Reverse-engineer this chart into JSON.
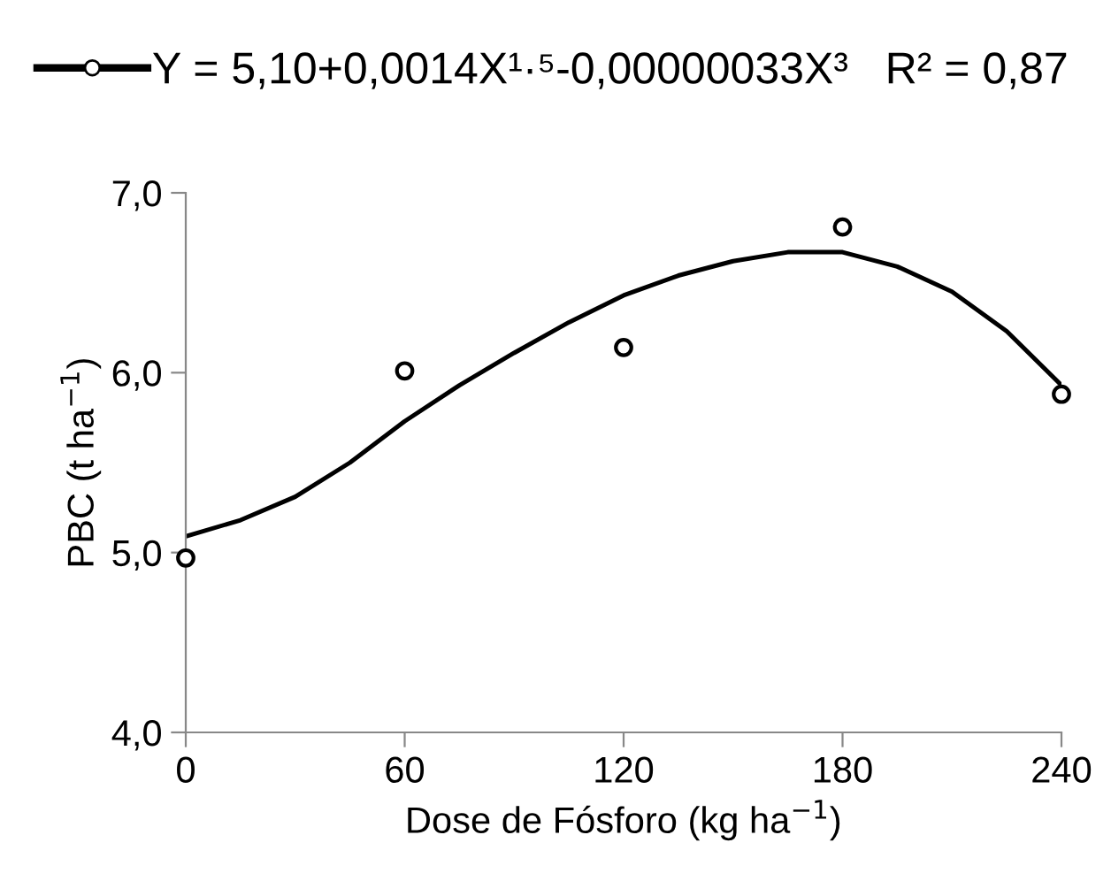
{
  "chart_data": {
    "type": "scatter",
    "xlabel": "Dose de Fósforo (kg ha$^{−1}$)",
    "ylabel": "PBC (t ha$^{−1}$)",
    "series": [
      {
        "color": "#000000",
        "marker": "circle",
        "x": [
          0,
          60,
          120,
          180,
          240
        ],
        "values": [
          4.97,
          6.01,
          6.14,
          6.81,
          5.88
        ]
      },
      {
        "type": "line",
        "name": "Y = 5,10+0,0014X¹·⁵-0,00000033X³   R² = 0,87",
        "color": "#000000",
        "line_style": "solid",
        "x": [
          0,
          15,
          30,
          45,
          60,
          75,
          90,
          105,
          120,
          135,
          150,
          165,
          180,
          195,
          210,
          225,
          240
        ],
        "values": [
          5.09,
          5.18,
          5.31,
          5.5,
          5.73,
          5.93,
          6.11,
          6.28,
          6.43,
          6.54,
          6.62,
          6.67,
          6.67,
          6.59,
          6.45,
          6.23,
          5.93
        ]
      }
    ],
    "xlim": [
      0,
      240
    ],
    "xticks": [
      0,
      60,
      120,
      180,
      240
    ],
    "ylim": [
      4,
      7
    ],
    "yticks": [
      {
        "value": 4,
        "label": "4,0"
      },
      {
        "value": 5,
        "label": "5,0"
      },
      {
        "value": 6,
        "label": "6,0"
      },
      {
        "value": 7,
        "label": "7,0"
      }
    ],
    "grid": false,
    "legend": "top"
  }
}
